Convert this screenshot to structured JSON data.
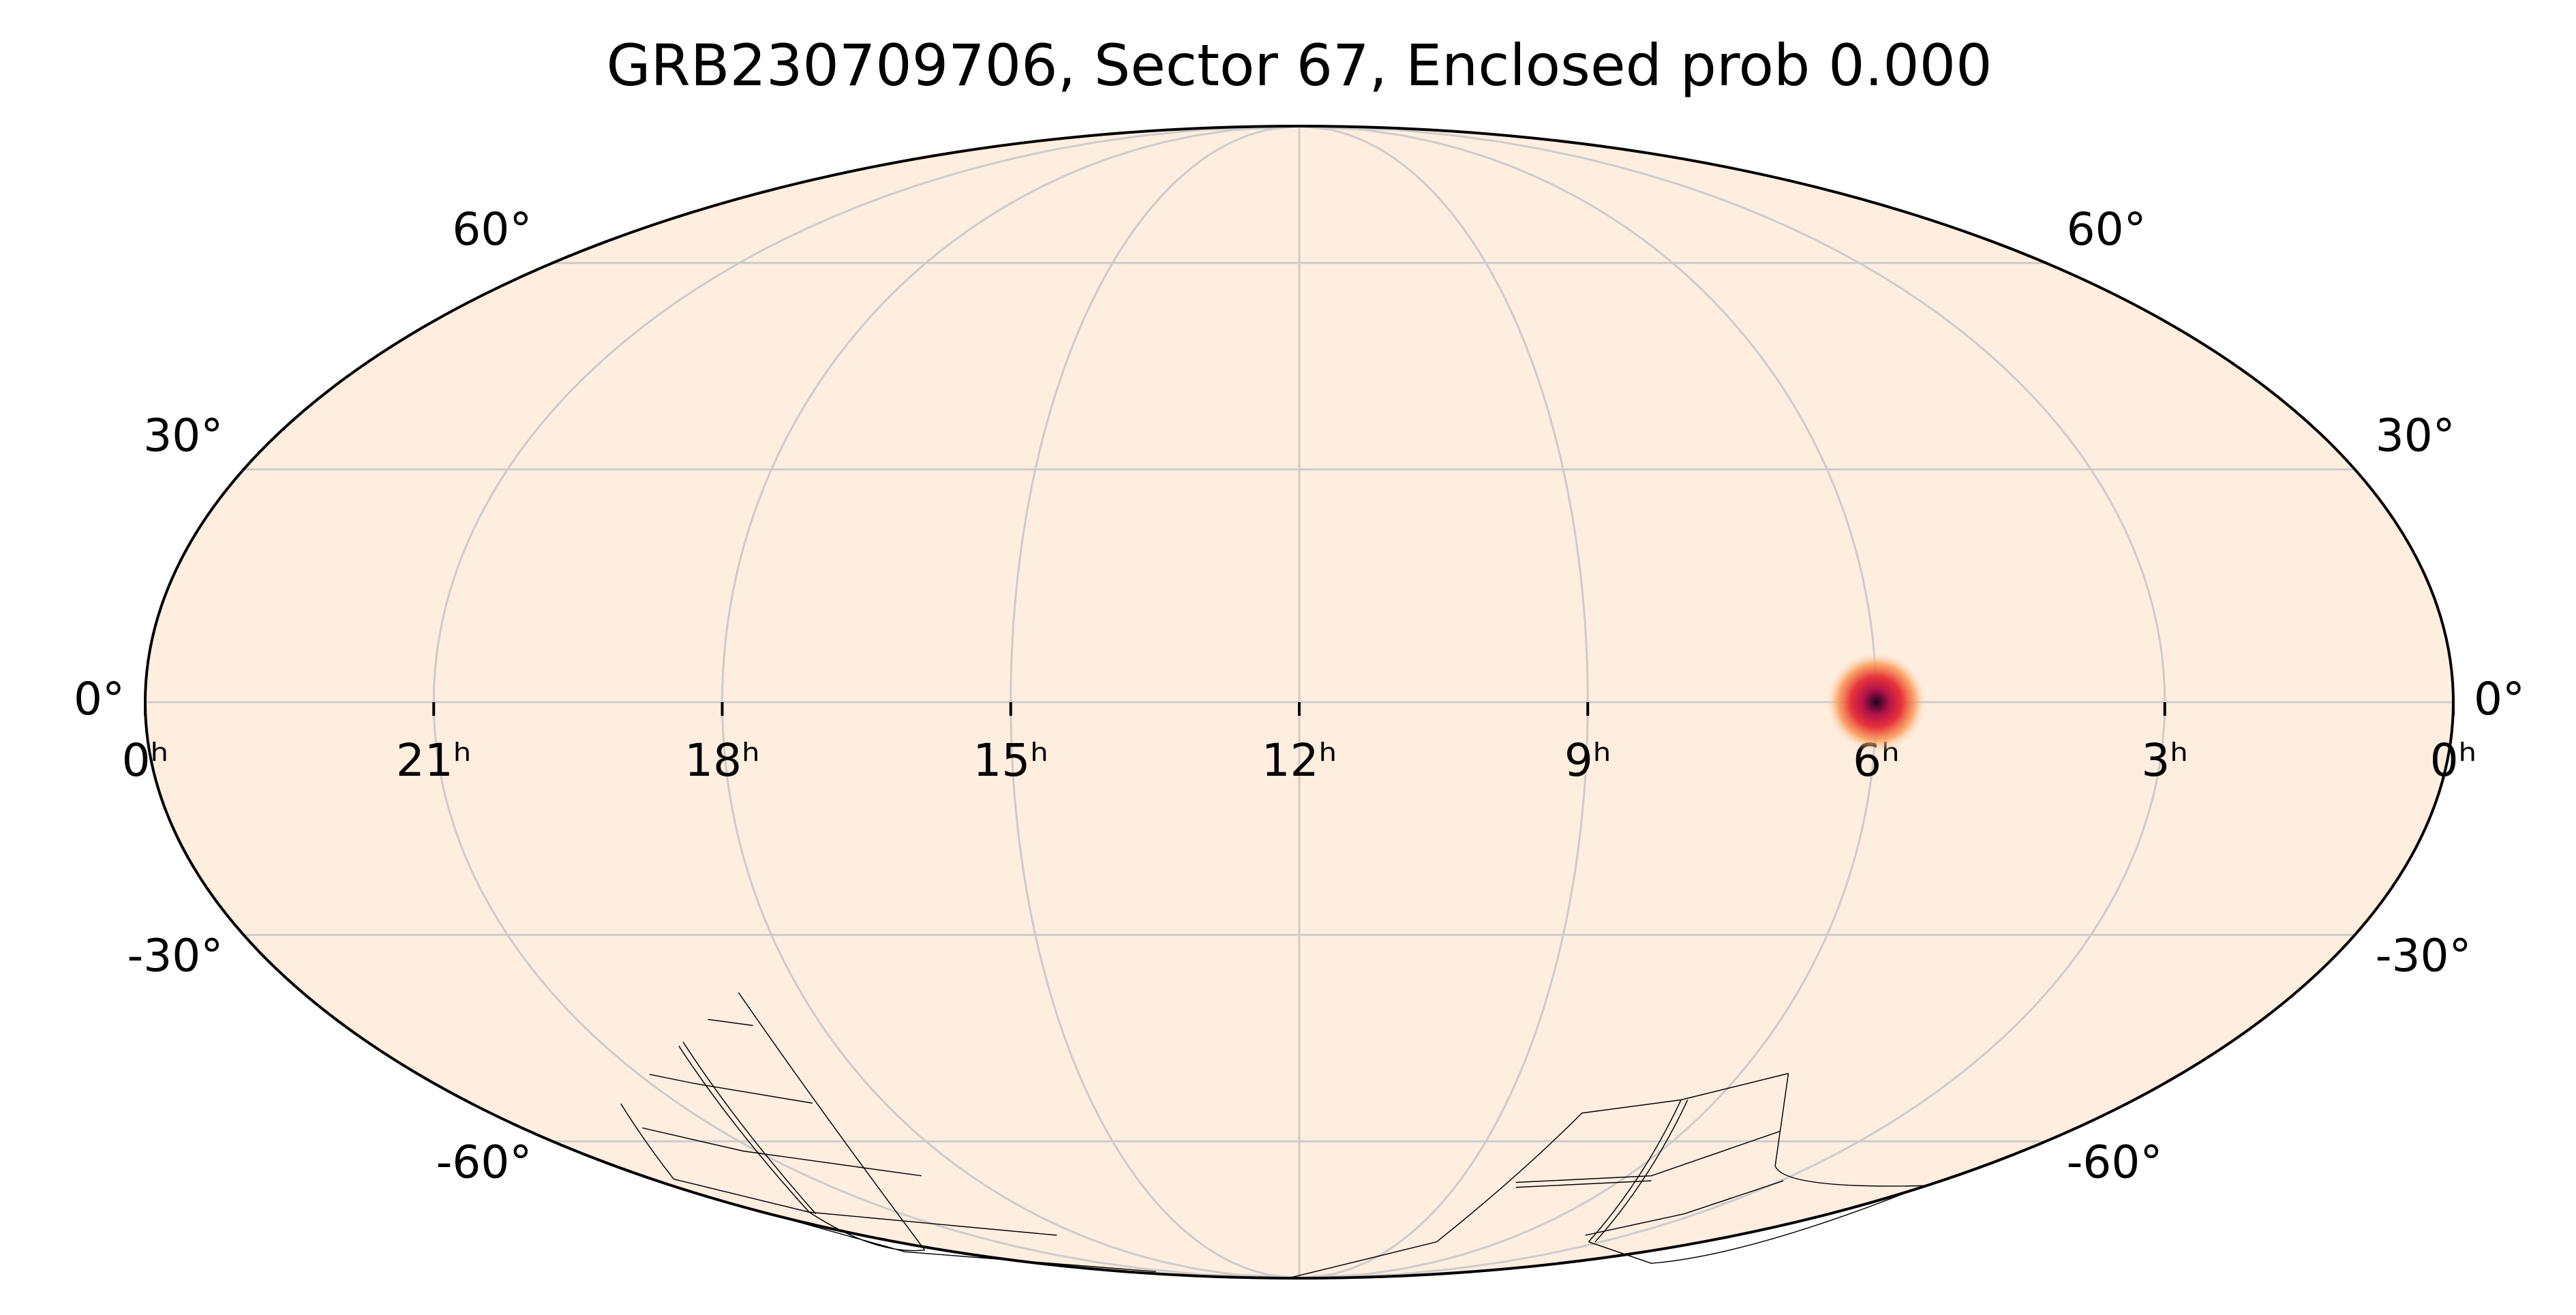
{
  "chart_data": {
    "type": "skymap",
    "projection": "mollweide",
    "title": "GRB230709706, Sector 67, Enclosed prob 0.000",
    "xlim": [
      24,
      0
    ],
    "xticks": [
      {
        "value": 24,
        "label": "0ʰ"
      },
      {
        "value": 21,
        "label": "21ʰ"
      },
      {
        "value": 18,
        "label": "18ʰ"
      },
      {
        "value": 15,
        "label": "15ʰ"
      },
      {
        "value": 12,
        "label": "12ʰ"
      },
      {
        "value": 9,
        "label": "9ʰ"
      },
      {
        "value": 6,
        "label": "6ʰ"
      },
      {
        "value": 3,
        "label": "3ʰ"
      },
      {
        "value": 0,
        "label": "0ʰ"
      }
    ],
    "ylim": [
      -90,
      90
    ],
    "yticks": [
      {
        "value": -60,
        "label": "-60°"
      },
      {
        "value": -30,
        "label": "-30°"
      },
      {
        "value": 0,
        "label": "0°"
      },
      {
        "value": 30,
        "label": "30°"
      },
      {
        "value": 60,
        "label": "60°"
      }
    ],
    "grid": true,
    "background": "#feeee0",
    "grid_color": "#cccccc",
    "points": [
      {
        "x": 6,
        "y": 0,
        "color": "#d0103a"
      }
    ]
  }
}
